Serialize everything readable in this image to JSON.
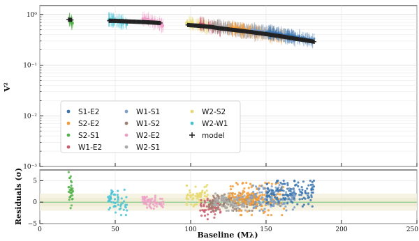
{
  "chart_data": [
    {
      "type": "scatter",
      "title": "",
      "xlabel": "",
      "ylabel": "V²",
      "yscale": "log",
      "xlim": [
        0,
        250
      ],
      "ylim": [
        0.001,
        1.5
      ],
      "grid": true,
      "ytick_labels": [
        "10⁰",
        "10⁻¹",
        "10⁻²",
        "10⁻³"
      ],
      "ytick_values": [
        1,
        0.1,
        0.01,
        0.001
      ],
      "legend": {
        "position": "lower-left",
        "entries": [
          {
            "label": "S1-E2",
            "color": "#3b75af"
          },
          {
            "label": "W1-S1",
            "color": "#7f9fc6"
          },
          {
            "label": "W2-S2",
            "color": "#e7d96f"
          },
          {
            "label": "S2-E2",
            "color": "#f39b35"
          },
          {
            "label": "W1-S2",
            "color": "#9a8072"
          },
          {
            "label": "W2-W1",
            "color": "#49c2d6"
          },
          {
            "label": "S2-S1",
            "color": "#54b34a"
          },
          {
            "label": "W2-E2",
            "color": "#ee9fc8"
          },
          {
            "label": "model",
            "color": "#222222",
            "marker": "+"
          },
          {
            "label": "W1-E2",
            "color": "#c85d6f"
          },
          {
            "label": "W2-S1",
            "color": "#a9a9a9"
          }
        ]
      },
      "series": [
        {
          "name": "S2-S1",
          "color": "#54b34a",
          "x_range": [
            19,
            22
          ],
          "v2_range": [
            0.62,
            0.82
          ]
        },
        {
          "name": "W2-W1",
          "color": "#49c2d6",
          "x_range": [
            45,
            58
          ],
          "v2_range": [
            0.62,
            0.82
          ]
        },
        {
          "name": "W2-E2",
          "color": "#ee9fc8",
          "x_range": [
            68,
            82
          ],
          "v2_range": [
            0.55,
            0.85
          ]
        },
        {
          "name": "W2-S2",
          "color": "#e7d96f",
          "x_range": [
            97,
            112
          ],
          "v2_range": [
            0.52,
            0.7
          ]
        },
        {
          "name": "W1-E2",
          "color": "#c85d6f",
          "x_range": [
            106,
            120
          ],
          "v2_range": [
            0.45,
            0.66
          ]
        },
        {
          "name": "W1-S2",
          "color": "#9a8072",
          "x_range": [
            112,
            145
          ],
          "v2_range": [
            0.38,
            0.6
          ]
        },
        {
          "name": "W2-S1",
          "color": "#a9a9a9",
          "x_range": [
            115,
            140
          ],
          "v2_range": [
            0.4,
            0.6
          ]
        },
        {
          "name": "S2-E2",
          "color": "#f39b35",
          "x_range": [
            125,
            162
          ],
          "v2_range": [
            0.3,
            0.55
          ]
        },
        {
          "name": "W1-S1",
          "color": "#7f9fc6",
          "x_range": [
            140,
            170
          ],
          "v2_range": [
            0.3,
            0.5
          ]
        },
        {
          "name": "S1-E2",
          "color": "#3b75af",
          "x_range": [
            150,
            182
          ],
          "v2_range": [
            0.26,
            0.45
          ]
        }
      ],
      "model": {
        "name": "model",
        "color": "#222222",
        "x": [
          19,
          21,
          46,
          50,
          55,
          58,
          68,
          72,
          76,
          80,
          98,
          105,
          110,
          115,
          120,
          130,
          140,
          150,
          160,
          170,
          176,
          182
        ],
        "y": [
          0.79,
          0.78,
          0.75,
          0.75,
          0.74,
          0.73,
          0.71,
          0.7,
          0.69,
          0.68,
          0.62,
          0.6,
          0.58,
          0.56,
          0.53,
          0.49,
          0.45,
          0.41,
          0.37,
          0.33,
          0.31,
          0.29
        ]
      }
    },
    {
      "type": "scatter",
      "title": "",
      "xlabel": "Baseline (Mλ)",
      "ylabel": "Residuals (σ)",
      "xlim": [
        0,
        250
      ],
      "ylim": [
        -5,
        7.5
      ],
      "grid": true,
      "xtick_labels": [
        "0",
        "50",
        "100",
        "150",
        "200",
        "250"
      ],
      "xtick_values": [
        0,
        50,
        100,
        150,
        200,
        250
      ],
      "ytick_labels": [
        "5",
        "0",
        "−5"
      ],
      "ytick_values": [
        5,
        0,
        -5
      ],
      "zero_line_color": "#6fbf73",
      "series": [
        {
          "name": "S2-S1",
          "color": "#54b34a",
          "x_range": [
            19,
            22
          ],
          "resid_range": [
            -2,
            7
          ]
        },
        {
          "name": "W2-W1",
          "color": "#49c2d6",
          "x_range": [
            45,
            58
          ],
          "resid_range": [
            -3,
            4
          ]
        },
        {
          "name": "W2-E2",
          "color": "#ee9fc8",
          "x_range": [
            68,
            82
          ],
          "resid_range": [
            -1.5,
            1.5
          ]
        },
        {
          "name": "W2-S2",
          "color": "#e7d96f",
          "x_range": [
            97,
            112
          ],
          "resid_range": [
            -1,
            4
          ]
        },
        {
          "name": "W1-E2",
          "color": "#c85d6f",
          "x_range": [
            106,
            120
          ],
          "resid_range": [
            -4,
            1.5
          ]
        },
        {
          "name": "W1-S2",
          "color": "#9a8072",
          "x_range": [
            112,
            145
          ],
          "resid_range": [
            -2,
            2
          ]
        },
        {
          "name": "W2-S1",
          "color": "#a9a9a9",
          "x_range": [
            115,
            140
          ],
          "resid_range": [
            -2,
            2
          ]
        },
        {
          "name": "S2-E2",
          "color": "#f39b35",
          "x_range": [
            125,
            162
          ],
          "resid_range": [
            -3,
            4.5
          ]
        },
        {
          "name": "W1-S1",
          "color": "#7f9fc6",
          "x_range": [
            140,
            170
          ],
          "resid_range": [
            -2,
            4
          ]
        },
        {
          "name": "S1-E2",
          "color": "#3b75af",
          "x_range": [
            150,
            182
          ],
          "resid_range": [
            -1,
            5
          ]
        }
      ]
    }
  ]
}
